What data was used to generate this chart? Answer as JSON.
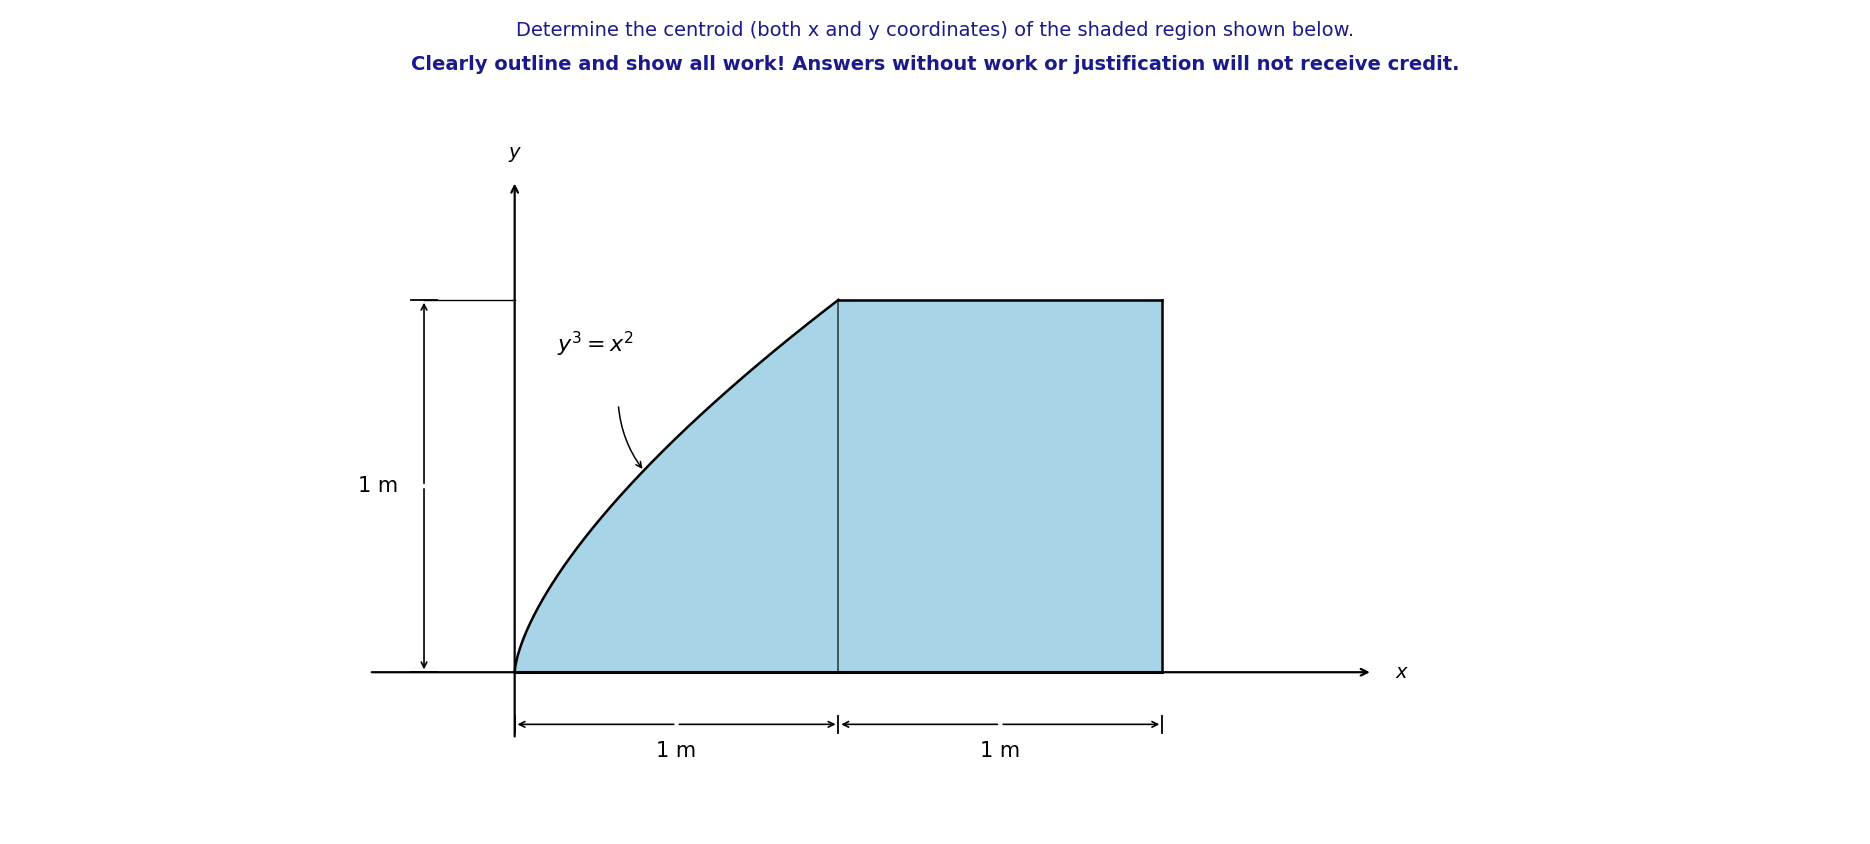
{
  "title_line1": "Determine the centroid (both x and y coordinates) of the shaded region shown below.",
  "title_line2": "Clearly outline and show all work! Answers without work or justification will not receive credit.",
  "title_color": "#1a1a8c",
  "shade_color": "#a8d4e8",
  "shade_alpha": 1.0,
  "curve_color": "#000000",
  "label_color": "#000000",
  "bg_color": "#ffffff",
  "x_axis_label": "x",
  "y_axis_label": "y",
  "dim_label_1m_h": "1 m",
  "dim_label_1m_v": "1 m",
  "font_size_title1": 14,
  "font_size_title2": 14,
  "font_size_label": 14,
  "font_size_eq": 14,
  "font_size_dim": 14
}
